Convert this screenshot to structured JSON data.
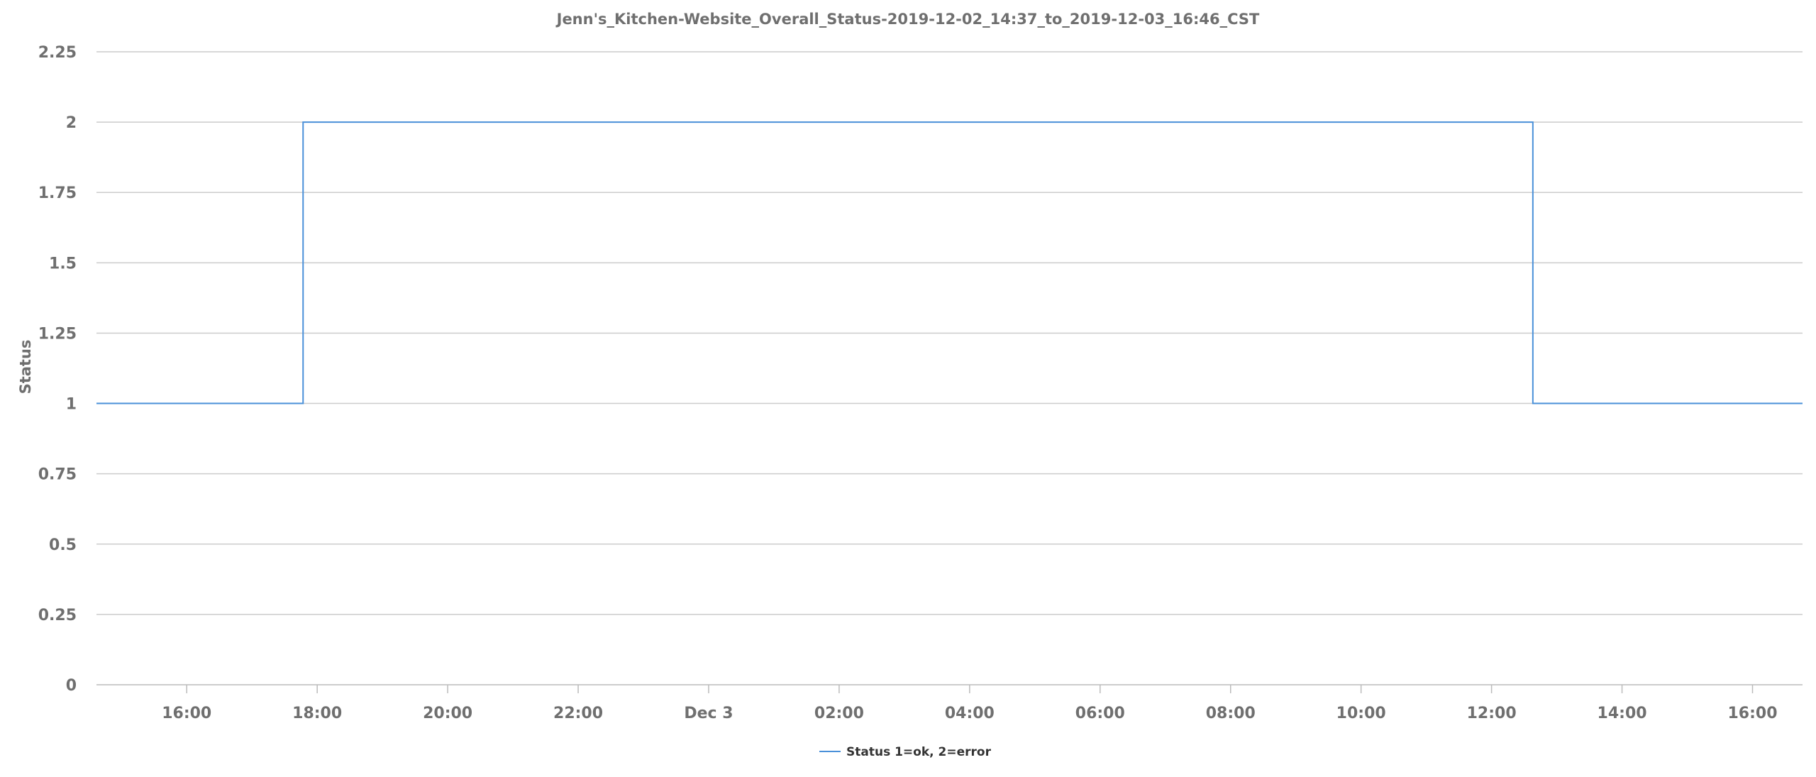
{
  "chart_data": {
    "type": "line",
    "step": true,
    "title": "Jenn's_Kitchen-Website_Overall_Status-2019-12-02_14:37_to_2019-12-03_16:46_CST",
    "xlabel": "",
    "ylabel": "Status",
    "xlim": [
      "2019-12-02 14:37",
      "2019-12-03 16:46"
    ],
    "ylim": [
      0,
      2.25
    ],
    "y_ticks": [
      0,
      0.25,
      0.5,
      0.75,
      1,
      1.25,
      1.5,
      1.75,
      2,
      2.25
    ],
    "y_tick_labels": [
      "0",
      "0.25",
      "0.5",
      "0.75",
      "1",
      "1.25",
      "1.5",
      "1.75",
      "2",
      "2.25"
    ],
    "x_ticks": [
      {
        "time": "2019-12-02 16:00",
        "label": "16:00"
      },
      {
        "time": "2019-12-02 18:00",
        "label": "18:00"
      },
      {
        "time": "2019-12-02 20:00",
        "label": "20:00"
      },
      {
        "time": "2019-12-02 22:00",
        "label": "22:00"
      },
      {
        "time": "2019-12-03 00:00",
        "label": "Dec 3"
      },
      {
        "time": "2019-12-03 02:00",
        "label": "02:00"
      },
      {
        "time": "2019-12-03 04:00",
        "label": "04:00"
      },
      {
        "time": "2019-12-03 06:00",
        "label": "06:00"
      },
      {
        "time": "2019-12-03 08:00",
        "label": "08:00"
      },
      {
        "time": "2019-12-03 10:00",
        "label": "10:00"
      },
      {
        "time": "2019-12-03 12:00",
        "label": "12:00"
      },
      {
        "time": "2019-12-03 14:00",
        "label": "14:00"
      },
      {
        "time": "2019-12-03 16:00",
        "label": "16:00"
      }
    ],
    "grid": true,
    "legend_position": "bottom-center",
    "series": [
      {
        "name": "Status 1=ok, 2=error",
        "color": "#4a90d9",
        "points": [
          {
            "x": "2019-12-02 14:37",
            "y": 1
          },
          {
            "x": "2019-12-02 17:47",
            "y": 1
          },
          {
            "x": "2019-12-02 17:47",
            "y": 2
          },
          {
            "x": "2019-12-03 12:38",
            "y": 2
          },
          {
            "x": "2019-12-03 12:38",
            "y": 1
          },
          {
            "x": "2019-12-03 16:46",
            "y": 1
          }
        ]
      }
    ]
  }
}
